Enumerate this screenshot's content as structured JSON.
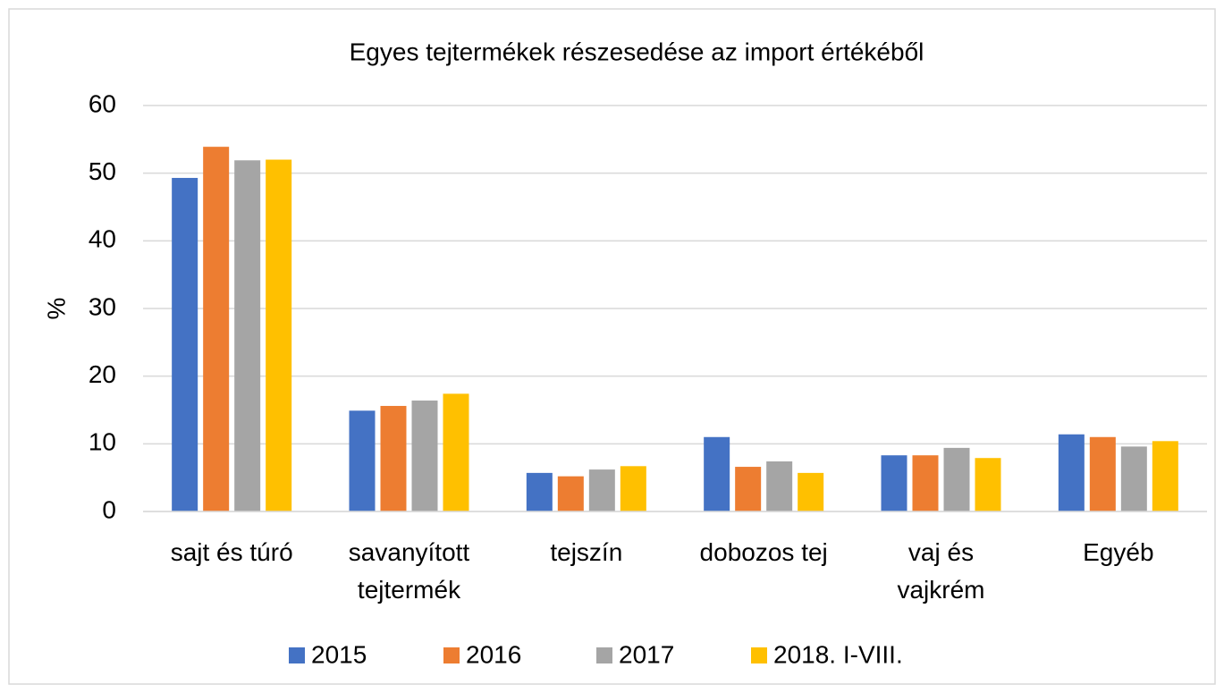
{
  "chart_data": {
    "type": "bar",
    "title": "Egyes tejtermékek részesedése az import értékéből",
    "y_label": "%",
    "categories": [
      "sajt és túró",
      "savanyított\ntejtermék",
      "tejszín",
      "dobozos tej",
      "vaj és\nvajkrém",
      "Egyéb"
    ],
    "series": [
      {
        "name": "2015",
        "color": "#4472c4",
        "values": [
          49.3,
          14.9,
          5.7,
          11.0,
          8.3,
          11.4
        ]
      },
      {
        "name": "2016",
        "color": "#ed7d31",
        "values": [
          53.9,
          15.6,
          5.2,
          6.6,
          8.3,
          11.0
        ]
      },
      {
        "name": "2017",
        "color": "#a5a5a5",
        "values": [
          51.9,
          16.4,
          6.2,
          7.4,
          9.4,
          9.6
        ]
      },
      {
        "name": "2018. I-VIII.",
        "color": "#ffc000",
        "values": [
          52.0,
          17.4,
          6.7,
          5.7,
          7.9,
          10.4
        ]
      }
    ],
    "ylim": [
      0,
      60
    ],
    "yticks": [
      0,
      10,
      20,
      30,
      40,
      50,
      60
    ],
    "grid": true,
    "legend": "bottom"
  }
}
